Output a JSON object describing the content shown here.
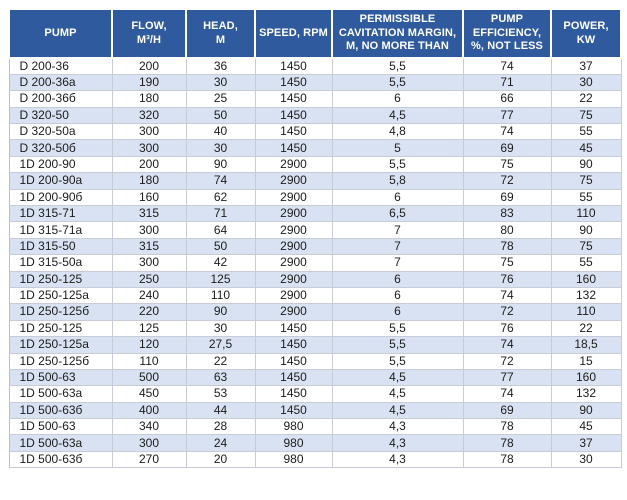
{
  "colors": {
    "header_bg": "#2F5B9E",
    "header_text": "#FFFFFF",
    "row_alt_bg": "#D9E2F2",
    "row_bg": "#FFFFFF",
    "grid_line": "#C7CCD8",
    "outer_border": "#B7BCC8",
    "body_text": "#1C1C1C",
    "page_bg": "#FFFFFF"
  },
  "table": {
    "columns": [
      {
        "key": "pump",
        "label": "PUMP"
      },
      {
        "key": "flow",
        "label": "FLOW,\nM³/H"
      },
      {
        "key": "head",
        "label": "HEAD,\nM"
      },
      {
        "key": "speed",
        "label": "SPEED, RPM"
      },
      {
        "key": "cavitation-margin",
        "label": "PERMISSIBLE\nCAVITATION MARGIN,\nM, NO MORE THAN"
      },
      {
        "key": "efficiency",
        "label": "PUMP\nEFFICIENCY,\n%, NOT LESS"
      },
      {
        "key": "power",
        "label": "POWER,\nKW"
      }
    ],
    "rows": [
      [
        "D 200-36",
        "200",
        "36",
        "1450",
        "5,5",
        "74",
        "37"
      ],
      [
        "D 200-36a",
        "190",
        "30",
        "1450",
        "5,5",
        "71",
        "30"
      ],
      [
        "D 200-36б",
        "180",
        "25",
        "1450",
        "6",
        "66",
        "22"
      ],
      [
        "D 320-50",
        "320",
        "50",
        "1450",
        "4,5",
        "77",
        "75"
      ],
      [
        "D 320-50a",
        "300",
        "40",
        "1450",
        "4,8",
        "74",
        "55"
      ],
      [
        "D 320-50б",
        "300",
        "30",
        "1450",
        "5",
        "69",
        "45"
      ],
      [
        "1D 200-90",
        "200",
        "90",
        "2900",
        "5,5",
        "75",
        "90"
      ],
      [
        "1D 200-90a",
        "180",
        "74",
        "2900",
        "5,8",
        "72",
        "75"
      ],
      [
        "1D 200-90б",
        "160",
        "62",
        "2900",
        "6",
        "69",
        "55"
      ],
      [
        "1D 315-71",
        "315",
        "71",
        "2900",
        "6,5",
        "83",
        "110"
      ],
      [
        "1D 315-71a",
        "300",
        "64",
        "2900",
        "7",
        "80",
        "90"
      ],
      [
        "1D 315-50",
        "315",
        "50",
        "2900",
        "7",
        "78",
        "75"
      ],
      [
        "1D 315-50a",
        "300",
        "42",
        "2900",
        "7",
        "75",
        "55"
      ],
      [
        "1D 250-125",
        "250",
        "125",
        "2900",
        "6",
        "76",
        "160"
      ],
      [
        "1D 250-125a",
        "240",
        "110",
        "2900",
        "6",
        "74",
        "132"
      ],
      [
        "1D 250-125б",
        "220",
        "90",
        "2900",
        "6",
        "72",
        "110"
      ],
      [
        "1D 250-125",
        "125",
        "30",
        "1450",
        "5,5",
        "76",
        "22"
      ],
      [
        "1D 250-125a",
        "120",
        "27,5",
        "1450",
        "5,5",
        "74",
        "18,5"
      ],
      [
        "1D 250-125б",
        "110",
        "22",
        "1450",
        "5,5",
        "72",
        "15"
      ],
      [
        "1D 500-63",
        "500",
        "63",
        "1450",
        "4,5",
        "77",
        "160"
      ],
      [
        "1D 500-63a",
        "450",
        "53",
        "1450",
        "4,5",
        "74",
        "132"
      ],
      [
        "1D 500-63б",
        "400",
        "44",
        "1450",
        "4,5",
        "69",
        "90"
      ],
      [
        "1D 500-63",
        "340",
        "28",
        "980",
        "4,3",
        "78",
        "45"
      ],
      [
        "1D 500-63a",
        "300",
        "24",
        "980",
        "4,3",
        "78",
        "37"
      ],
      [
        "1D 500-63б",
        "270",
        "20",
        "980",
        "4,3",
        "78",
        "30"
      ]
    ]
  }
}
